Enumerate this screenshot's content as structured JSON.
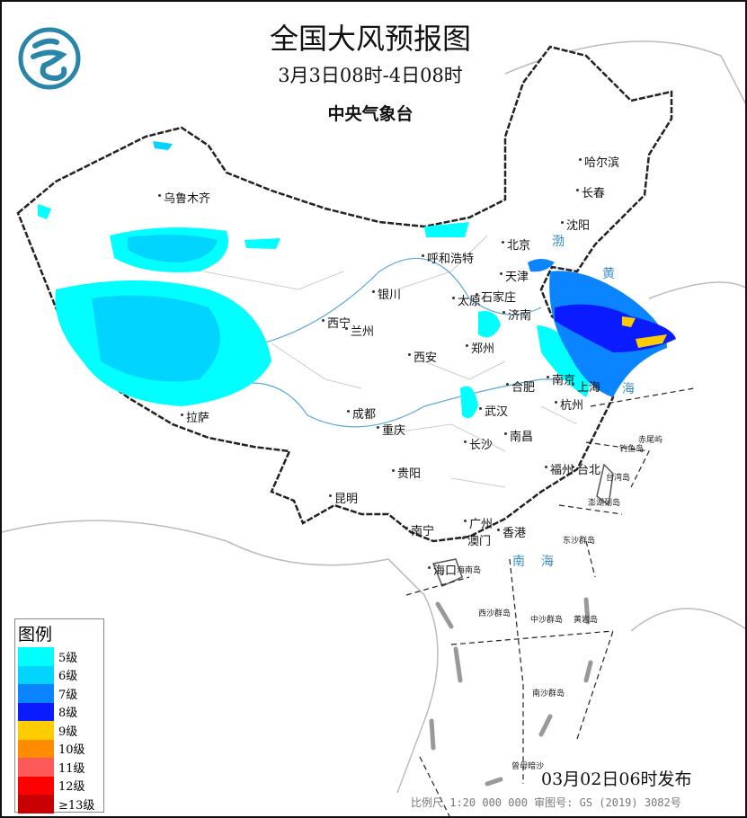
{
  "header": {
    "title": "全国大风预报图",
    "period": "3月3日08时-4日08时",
    "agency": "中央气象台",
    "logo_icon": "cma-logo-icon"
  },
  "cities": [
    "哈尔滨",
    "长春",
    "沈阳",
    "乌鲁木齐",
    "呼和浩特",
    "北京",
    "天津",
    "银川",
    "太原",
    "石家庄",
    "济南",
    "西宁",
    "兰州",
    "郑州",
    "西安",
    "南京",
    "合肥",
    "上海",
    "杭州",
    "武汉",
    "成都",
    "重庆",
    "拉萨",
    "长沙",
    "南昌",
    "贵阳",
    "福州",
    "台北",
    "昆明",
    "南宁",
    "广州",
    "香港",
    "澳门",
    "海口"
  ],
  "islands": [
    "海南岛",
    "台湾岛",
    "赤尾屿",
    "钓鱼岛",
    "澎湖列岛",
    "东沙群岛",
    "西沙群岛",
    "中沙群岛",
    "黄岩岛",
    "南沙群岛",
    "曾母暗沙"
  ],
  "seas": [
    "渤",
    "黄",
    "海",
    "南",
    "海"
  ],
  "legend": {
    "title": "图例",
    "items": [
      {
        "label": "5级",
        "color": "#00ffff"
      },
      {
        "label": "6级",
        "color": "#00d4ff"
      },
      {
        "label": "7级",
        "color": "#0a84ff"
      },
      {
        "label": "8级",
        "color": "#0a1cff"
      },
      {
        "label": "9级",
        "color": "#ffcc00"
      },
      {
        "label": "10级",
        "color": "#ff8c00"
      },
      {
        "label": "11级",
        "color": "#ff5a5a"
      },
      {
        "label": "12级",
        "color": "#ff0000"
      },
      {
        "label": "≥13级",
        "color": "#c80000"
      }
    ]
  },
  "footer": {
    "issued": "03月02日06时发布",
    "scale": "比例尺 1:20 000 000   审图号: GS (2019) 3082号"
  }
}
